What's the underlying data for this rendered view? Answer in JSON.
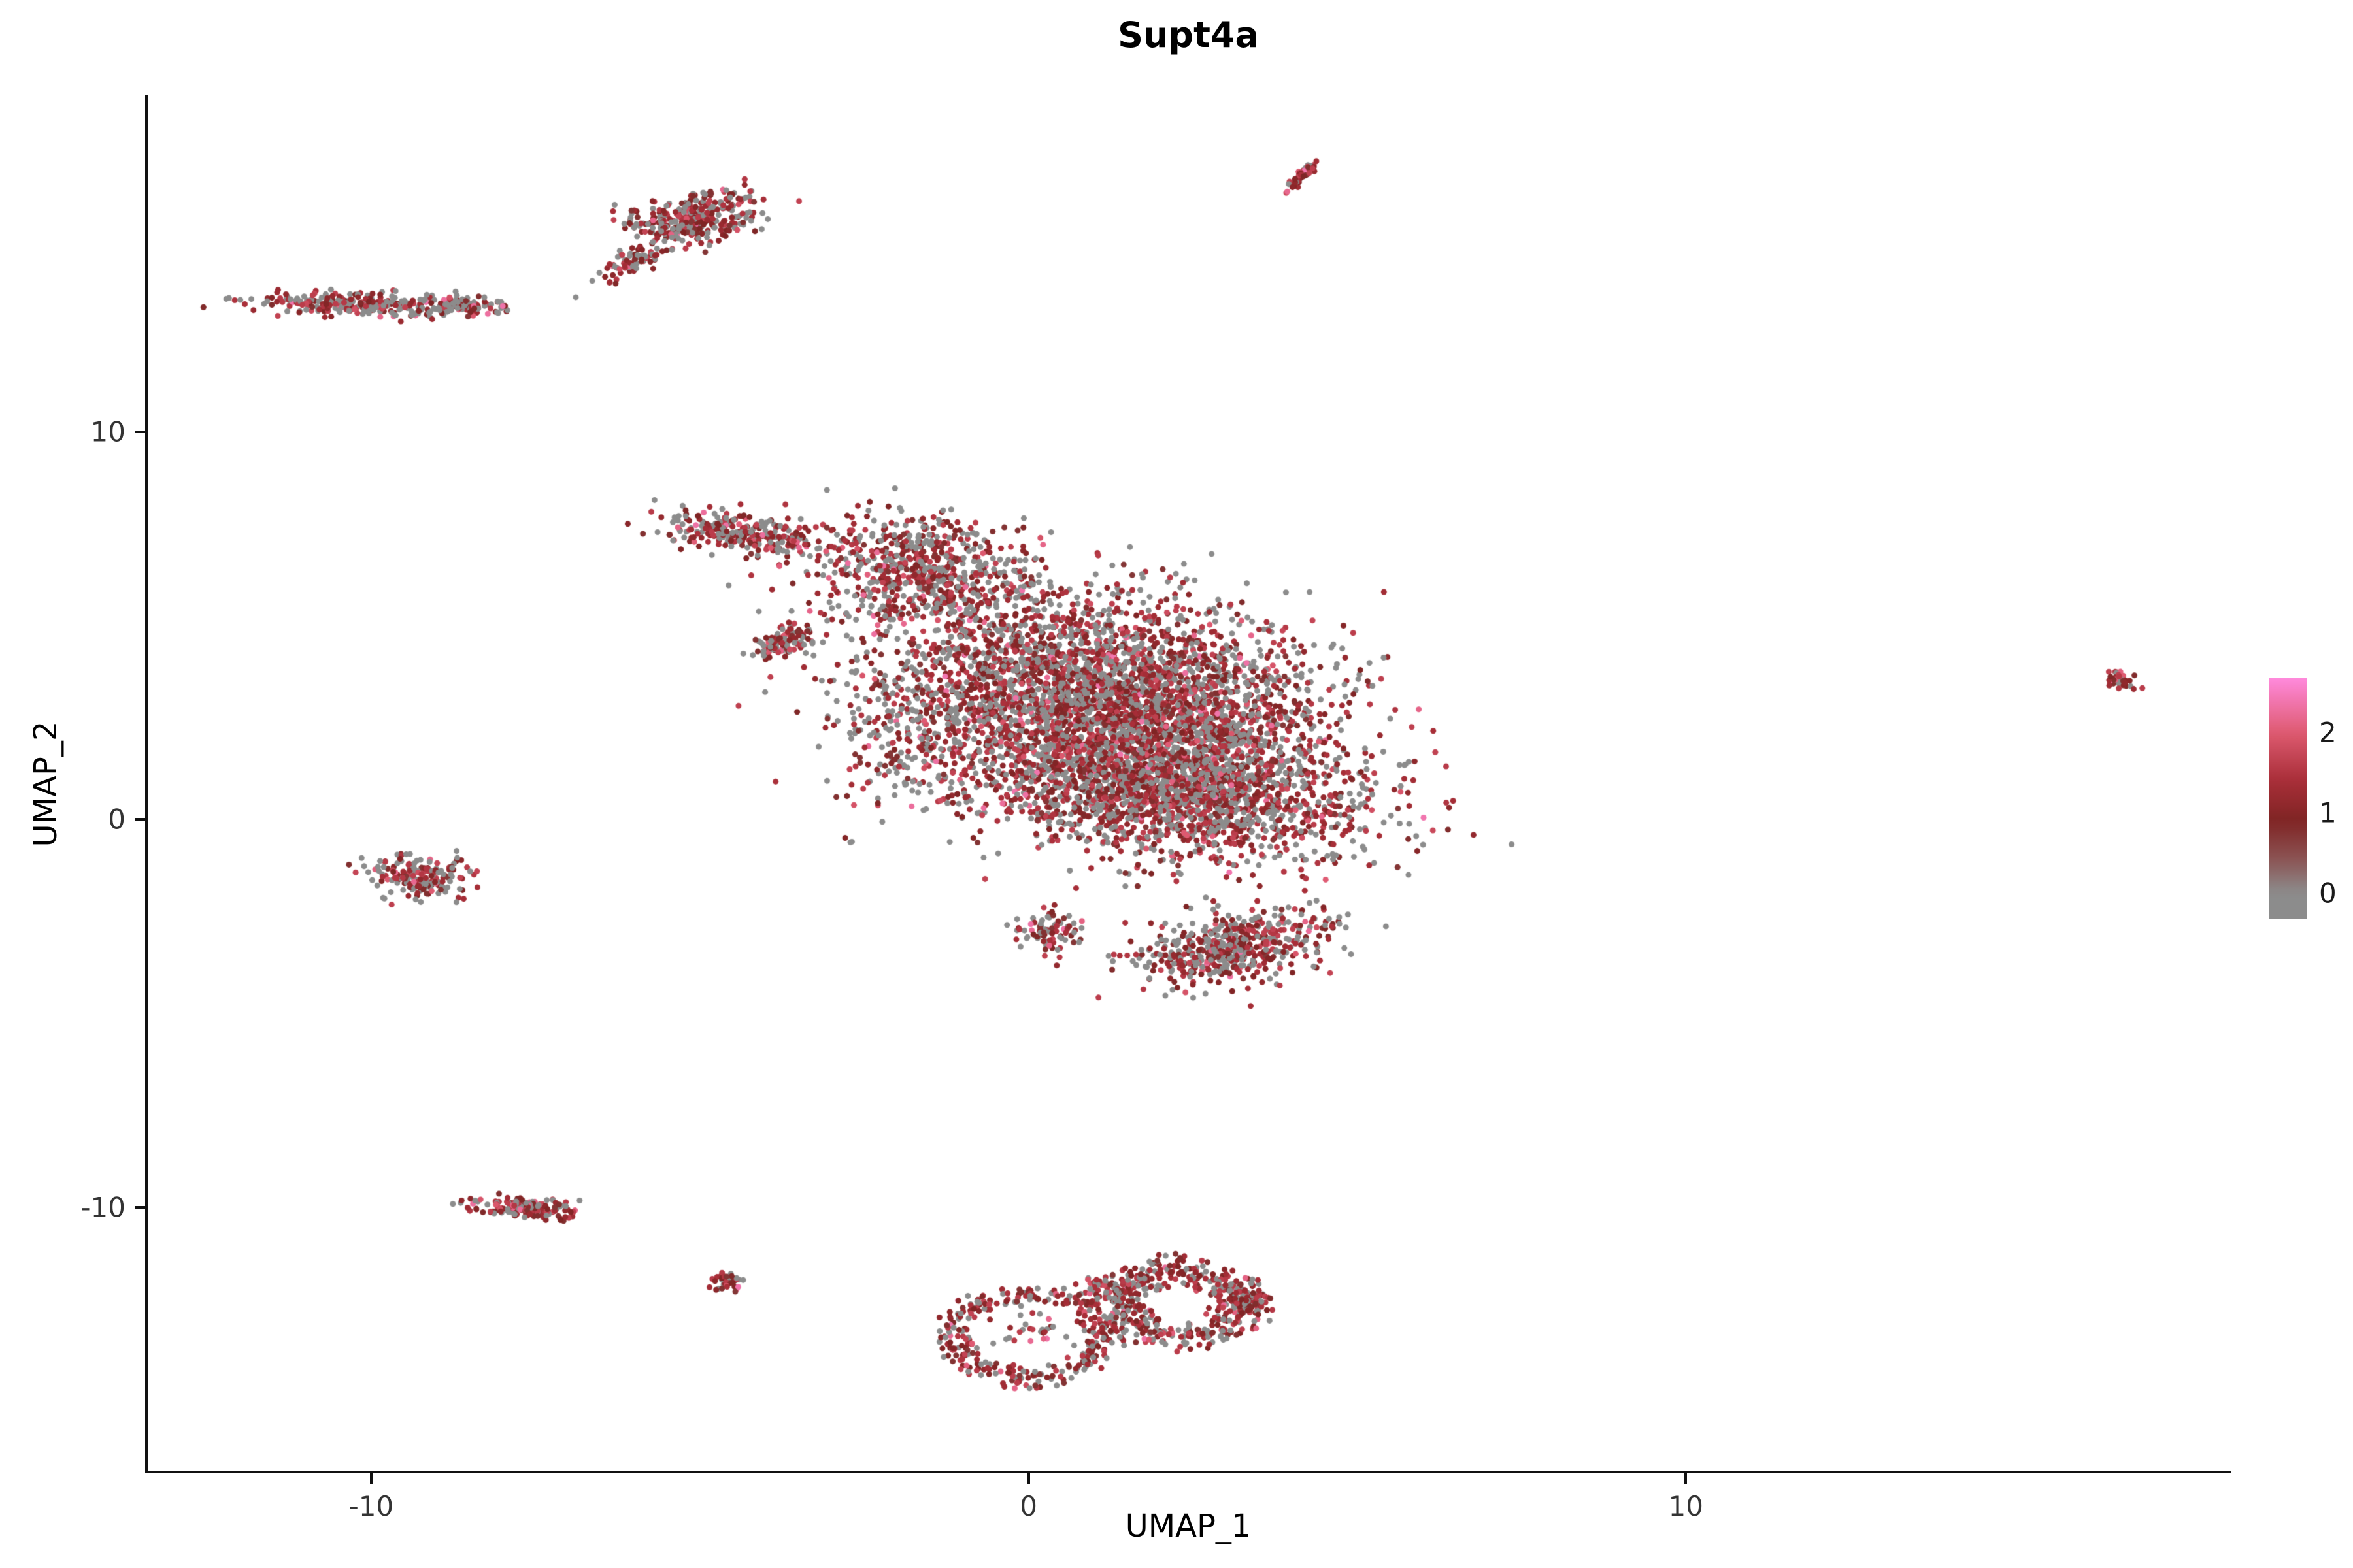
{
  "title": "Supt4a",
  "axes": {
    "xlabel": "UMAP_1",
    "ylabel": "UMAP_2",
    "xticks": [
      {
        "label": "-10",
        "value": -10
      },
      {
        "label": "0",
        "value": 0
      },
      {
        "label": "10",
        "value": 10
      }
    ],
    "yticks": [
      {
        "label": "10",
        "value": 10
      },
      {
        "label": "0",
        "value": 0
      },
      {
        "label": "-10",
        "value": -10
      }
    ]
  },
  "legend": {
    "vmin": -0.32,
    "vmax": 2.68,
    "labels": [
      {
        "text": "2",
        "value": 2
      },
      {
        "text": "1",
        "value": 1
      },
      {
        "text": "0",
        "value": 0
      }
    ]
  },
  "chart_data": {
    "type": "scatter",
    "title": "Supt4a",
    "xlabel": "UMAP_1",
    "ylabel": "UMAP_2",
    "xlim": [
      -13.4,
      18.3
    ],
    "ylim": [
      -16.8,
      18.7
    ],
    "grid": false,
    "point_radius": 4.5,
    "color_scale_note": "feature expression: 0 = gray, high = pink/magenta",
    "color_stops": [
      {
        "v": 0.0,
        "c": "#8C8C8C"
      },
      {
        "v": 0.45,
        "c": "#8B5050"
      },
      {
        "v": 0.9,
        "c": "#7F2424"
      },
      {
        "v": 1.4,
        "c": "#A82E38"
      },
      {
        "v": 2.0,
        "c": "#DE5A70"
      },
      {
        "v": 2.68,
        "c": "#FF8ADC"
      }
    ],
    "expression_distribution": {
      "zero_fraction": 0.4,
      "mid_min": 0.7,
      "mid_max": 1.7,
      "high_fraction": 0.05,
      "high_min": 1.7,
      "high_max": 2.4
    },
    "clusters": [
      {
        "name": "top-left-stripe",
        "shape": "gauss",
        "cx": -10.1,
        "cy": 13.3,
        "rx": 1.5,
        "ry": 0.3,
        "angle": -3,
        "n": 280,
        "zf": 0.5
      },
      {
        "name": "top-left-stripe-east",
        "shape": "gauss",
        "cx": -8.7,
        "cy": 13.25,
        "rx": 0.7,
        "ry": 0.22,
        "angle": 0,
        "n": 90,
        "zf": 0.5
      },
      {
        "name": "top-left-dot",
        "shape": "gauss",
        "cx": -7.95,
        "cy": 13.2,
        "rx": 0.1,
        "ry": 0.1,
        "angle": 0,
        "n": 8
      },
      {
        "name": "north-blob",
        "shape": "gauss",
        "cx": -5.1,
        "cy": 15.5,
        "rx": 1.0,
        "ry": 0.6,
        "angle": 20,
        "n": 330,
        "zf": 0.35
      },
      {
        "name": "north-blob-tail",
        "shape": "gauss",
        "cx": -6.0,
        "cy": 14.4,
        "rx": 0.6,
        "ry": 0.3,
        "angle": 45,
        "n": 80,
        "zf": 0.35
      },
      {
        "name": "north-streak",
        "shape": "gauss",
        "cx": 4.15,
        "cy": 16.6,
        "rx": 0.5,
        "ry": 0.1,
        "angle": 62,
        "n": 55,
        "zf": 0.15,
        "hf": 0.1
      },
      {
        "name": "main-left-arm",
        "shape": "gauss",
        "cx": -4.4,
        "cy": 7.4,
        "rx": 1.2,
        "ry": 0.5,
        "angle": -15,
        "n": 260,
        "zf": 0.35
      },
      {
        "name": "main-left-spur",
        "shape": "gauss",
        "cx": -3.7,
        "cy": 4.6,
        "rx": 0.55,
        "ry": 0.3,
        "angle": 40,
        "n": 110,
        "zf": 0.35
      },
      {
        "name": "main-upper",
        "shape": "gauss",
        "cx": -1.6,
        "cy": 6.4,
        "rx": 1.8,
        "ry": 1.4,
        "angle": -20,
        "n": 650
      },
      {
        "name": "main-core",
        "shape": "gauss",
        "cx": 1.1,
        "cy": 3.3,
        "rx": 3.4,
        "ry": 2.4,
        "angle": -18,
        "n": 3200
      },
      {
        "name": "main-core-lower",
        "shape": "gauss",
        "cx": 2.1,
        "cy": 0.9,
        "rx": 3.0,
        "ry": 1.8,
        "angle": -12,
        "n": 2200
      },
      {
        "name": "main-left-sparse",
        "shape": "gauss",
        "cx": -1.9,
        "cy": 2.2,
        "rx": 1.1,
        "ry": 1.9,
        "angle": 0,
        "n": 180,
        "zf": 0.55
      },
      {
        "name": "main-lower-arm",
        "shape": "gauss",
        "cx": 3.1,
        "cy": -3.3,
        "rx": 1.5,
        "ry": 0.9,
        "angle": 25,
        "n": 520
      },
      {
        "name": "main-lower-tip",
        "shape": "gauss",
        "cx": 0.3,
        "cy": -2.9,
        "rx": 0.5,
        "ry": 0.55,
        "angle": 0,
        "n": 90
      },
      {
        "name": "west-blob",
        "shape": "gauss",
        "cx": -9.3,
        "cy": -1.5,
        "rx": 0.75,
        "ry": 0.5,
        "angle": -10,
        "n": 190,
        "zf": 0.5
      },
      {
        "name": "southwest-stripe",
        "shape": "gauss",
        "cx": -7.7,
        "cy": -10.0,
        "rx": 0.85,
        "ry": 0.28,
        "angle": -6,
        "n": 160,
        "zf": 0.28,
        "hf": 0.12
      },
      {
        "name": "south-small-dot",
        "shape": "gauss",
        "cx": -4.6,
        "cy": -11.9,
        "rx": 0.22,
        "ry": 0.28,
        "angle": 0,
        "n": 45,
        "zf": 0.25
      },
      {
        "name": "south-ring-left",
        "shape": "ring",
        "cx": 0.0,
        "cy": -13.3,
        "r": 1.15,
        "width": 0.35,
        "sy": 0.95,
        "n": 300,
        "zf": 0.33
      },
      {
        "name": "south-ring-left-inner",
        "shape": "gauss",
        "cx": 0.1,
        "cy": -13.1,
        "rx": 0.7,
        "ry": 0.6,
        "angle": 0,
        "n": 30,
        "zf": 0.5
      },
      {
        "name": "south-ring-right",
        "shape": "ring",
        "cx": 2.3,
        "cy": -12.5,
        "r": 0.95,
        "width": 0.55,
        "sy": 0.9,
        "n": 420,
        "zf": 0.33
      },
      {
        "name": "south-bridge",
        "shape": "gauss",
        "cx": 1.2,
        "cy": -12.1,
        "rx": 0.45,
        "ry": 0.3,
        "angle": 0,
        "n": 70,
        "zf": 0.33
      },
      {
        "name": "south-right-tail",
        "shape": "gauss",
        "cx": 3.3,
        "cy": -12.4,
        "rx": 0.5,
        "ry": 0.3,
        "angle": -35,
        "n": 80,
        "zf": 0.33
      },
      {
        "name": "far-east-dot",
        "shape": "gauss",
        "cx": 16.6,
        "cy": 3.6,
        "rx": 0.28,
        "ry": 0.22,
        "angle": -30,
        "n": 40,
        "zf": 0.2,
        "hf": 0.1
      }
    ]
  }
}
